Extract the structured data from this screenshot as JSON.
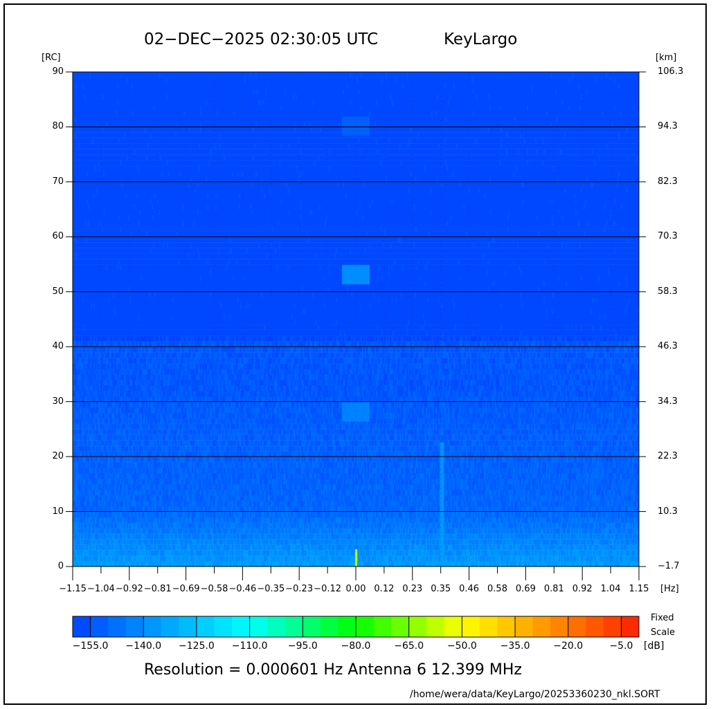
{
  "header": {
    "title": "02−DEC−2025 02:30:05 UTC",
    "station": "KeyLargo"
  },
  "chart_data": {
    "type": "heatmap",
    "title": "02-DEC-2025 02:30:05 UTC  KeyLargo",
    "x_unit": "[Hz]",
    "y_left_unit": "[RC]",
    "y_right_unit": "[km]",
    "xlim": [
      -1.15,
      1.15
    ],
    "ylim": [
      0,
      90
    ],
    "x_ticks": [
      "−1.15",
      "−1.04",
      "−0.92",
      "−0.81",
      "−0.69",
      "−0.58",
      "−0.46",
      "−0.35",
      "−0.23",
      "−0.12",
      "0.00",
      "0.12",
      "0.23",
      "0.35",
      "0.46",
      "0.58",
      "0.69",
      "0.81",
      "0.92",
      "1.04",
      "1.15"
    ],
    "y_ticks": [
      "0",
      "10",
      "20",
      "30",
      "40",
      "50",
      "60",
      "70",
      "80",
      "90"
    ],
    "y_right_ticks": [
      "−1.7",
      "10.3",
      "22.3",
      "34.3",
      "46.3",
      "58.3",
      "70.3",
      "82.3",
      "94.3",
      "106.3"
    ],
    "grid": "horizontal lines every 10 RC",
    "features": [
      {
        "doppler_hz": 0.0,
        "range_rc": 80,
        "level_db": -150
      },
      {
        "doppler_hz": 0.0,
        "range_rc": 53,
        "level_db": -135
      },
      {
        "doppler_hz": 0.0,
        "range_rc": 28,
        "level_db": -140
      },
      {
        "doppler_hz": 0.35,
        "range_rc": 10,
        "level_db": -135
      }
    ],
    "colorbar": {
      "min_db": -160,
      "max_db": 0,
      "step_db": 5,
      "unit": "[dB]",
      "tick_labels": [
        "−155.0",
        "−140.0",
        "−125.0",
        "−110.0",
        "−95.0",
        "−80.0",
        "−65.0",
        "−50.0",
        "−35.0",
        "−20.0",
        "−5.0"
      ],
      "colors": [
        "#0040ff",
        "#00ffff",
        "#00ff00",
        "#ffff00",
        "#ff2000"
      ]
    }
  },
  "legend": {
    "fixed": "Fixed",
    "scale": "Scale"
  },
  "footer": {
    "resolution": "Resolution = 0.000601 Hz   Antenna  6   12.399 MHz",
    "path": "/home/wera/data/KeyLargo/20253360230_nkl.SORT"
  }
}
